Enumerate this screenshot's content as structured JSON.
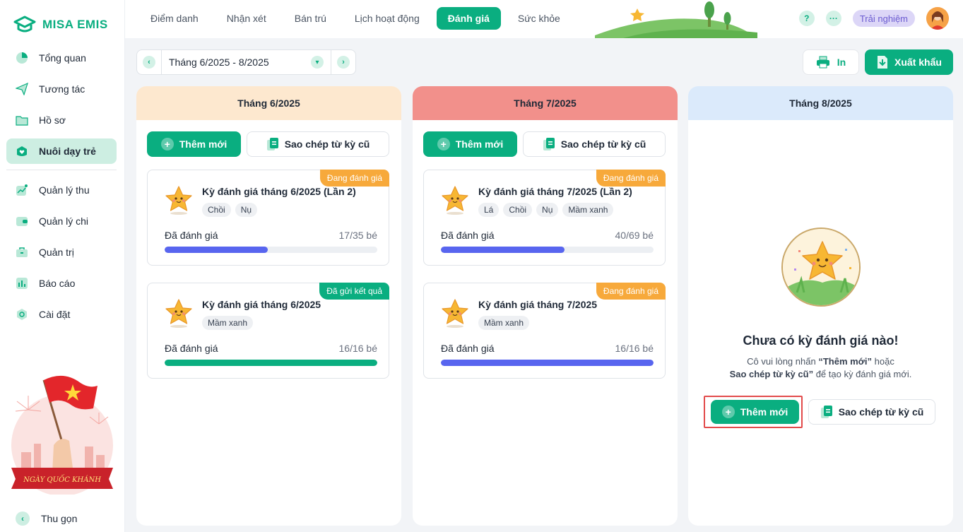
{
  "app": {
    "logo_text": "MISA EMIS"
  },
  "sidebar": {
    "items": [
      {
        "label": "Tổng quan",
        "icon": "pie-chart-icon"
      },
      {
        "label": "Tương tác",
        "icon": "paper-plane-icon"
      },
      {
        "label": "Hồ sơ",
        "icon": "folder-icon"
      },
      {
        "label": "Nuôi dạy trẻ",
        "icon": "heart-icon",
        "active": true
      },
      {
        "label": "Quản lý thu",
        "icon": "trend-chart-icon"
      },
      {
        "label": "Quản lý chi",
        "icon": "wallet-icon"
      },
      {
        "label": "Quản trị",
        "icon": "briefcase-icon"
      },
      {
        "label": "Báo cáo",
        "icon": "bar-chart-icon"
      },
      {
        "label": "Cài đặt",
        "icon": "settings-icon"
      }
    ],
    "promo_text": "NGÀY QUỐC KHÁNH",
    "collapse_label": "Thu gọn"
  },
  "topbar": {
    "tabs": [
      "Điểm danh",
      "Nhận xét",
      "Bán trú",
      "Lịch hoạt động",
      "Đánh giá",
      "Sức khỏe"
    ],
    "active_tab": "Đánh giá",
    "help": "?",
    "more": "···",
    "trial_label": "Trải nghiệm"
  },
  "toolbar": {
    "period": "Tháng 6/2025 - 8/2025",
    "print_label": "In",
    "export_label": "Xuất khẩu"
  },
  "common": {
    "add_label": "Thêm mới",
    "copy_label": "Sao chép từ kỳ cũ"
  },
  "colors": {
    "accent": "#0aae80",
    "col1_head": "#fde8cf",
    "col2_head": "#f2908b",
    "col3_head": "#dbeafb",
    "progress_blue": "#5865ef",
    "progress_green": "#0aae80",
    "badge_orange": "#f7a93b"
  },
  "columns": [
    {
      "header": "Tháng 6/2025",
      "cards": [
        {
          "badge": "Đang đánh giá",
          "title": "Kỳ đánh giá tháng 6/2025 (Lần 2)",
          "chips": [
            "Chồi",
            "Nụ"
          ],
          "progress_label": "Đã đánh giá",
          "progress_count": "17/35 bé",
          "progress": 0.486
        },
        {
          "badge": "Đã gửi kết quả",
          "title": "Kỳ đánh giá tháng 6/2025",
          "chips": [
            "Mầm xanh"
          ],
          "progress_label": "Đã đánh giá",
          "progress_count": "16/16 bé",
          "progress": 1.0
        }
      ]
    },
    {
      "header": "Tháng 7/2025",
      "cards": [
        {
          "badge": "Đang đánh giá",
          "title": "Kỳ đánh giá tháng 7/2025 (Lần 2)",
          "chips": [
            "Lá",
            "Chồi",
            "Nụ",
            "Mầm xanh"
          ],
          "progress_label": "Đã đánh giá",
          "progress_count": "40/69 bé",
          "progress": 0.58
        },
        {
          "badge": "Đang đánh giá",
          "title": "Kỳ đánh giá tháng 7/2025",
          "chips": [
            "Mầm xanh"
          ],
          "progress_label": "Đã đánh giá",
          "progress_count": "16/16 bé",
          "progress": 1.0
        }
      ]
    },
    {
      "header": "Tháng 8/2025",
      "empty": {
        "title": "Chưa có kỳ đánh giá nào!",
        "desc_1": "Cô vui lòng nhấn",
        "desc_quote_1": "“Thêm mới”",
        "desc_2": "hoặc",
        "desc_quote_2": "Sao chép từ kỳ cũ”",
        "desc_3": "để tạo kỳ đánh giá mới."
      }
    }
  ]
}
